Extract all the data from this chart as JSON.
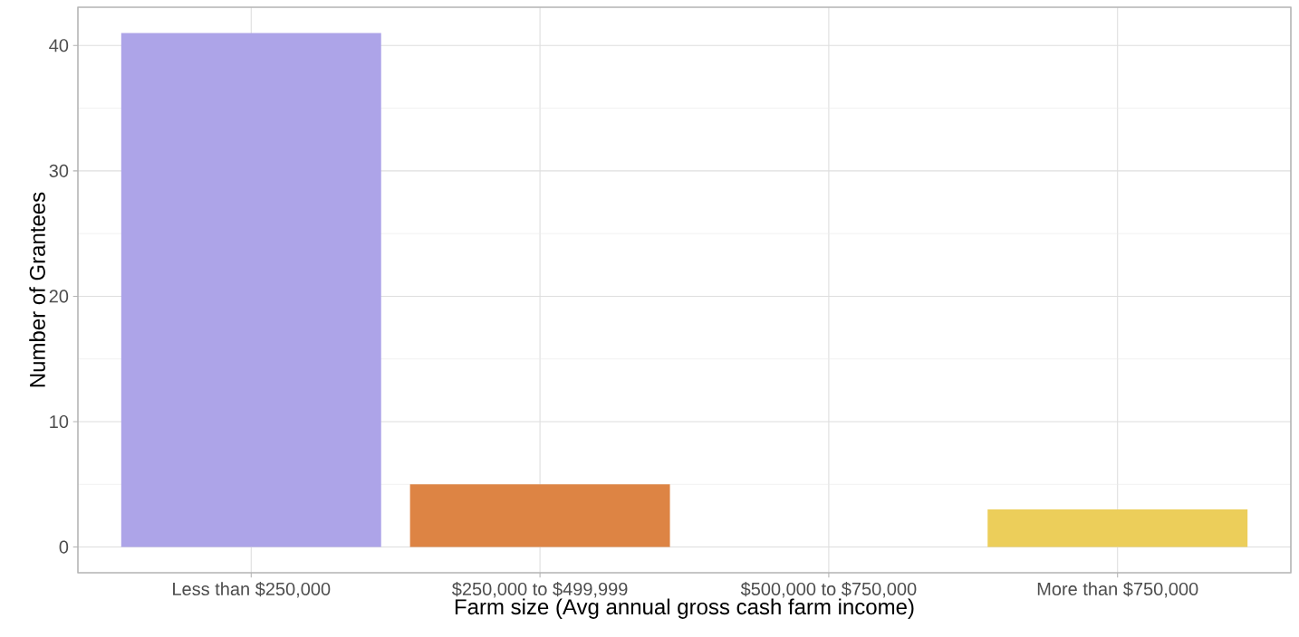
{
  "chart_data": {
    "type": "bar",
    "xlabel": "Farm size (Avg annual gross cash farm income)",
    "ylabel": "Number of Grantees",
    "categories": [
      "Less than $250,000",
      "$250,000 to $499,999",
      "$500,000 to $750,000",
      "More than $750,000"
    ],
    "values": [
      41,
      5,
      0,
      3
    ],
    "colors": [
      "#ada4e8",
      "#dd8444",
      "#5fb0a0",
      "#ecce5a"
    ],
    "ylim": [
      -2.05,
      43.05
    ],
    "yticks": [
      0,
      10,
      20,
      30,
      40
    ],
    "grid": true
  }
}
